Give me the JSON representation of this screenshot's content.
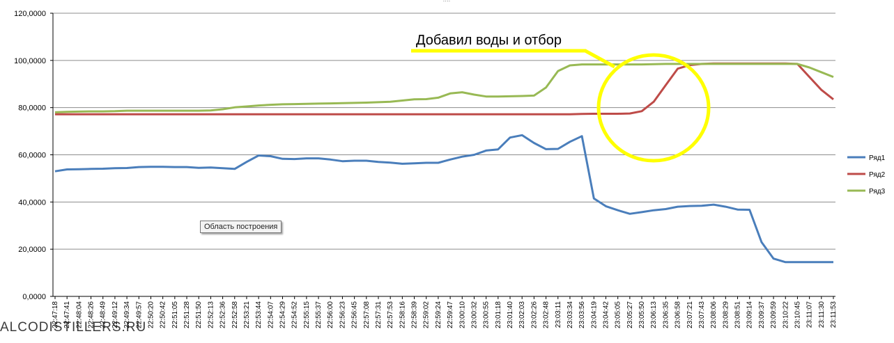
{
  "chart_data": {
    "type": "line",
    "title": "",
    "xlabel": "",
    "ylabel": "",
    "ylim": [
      0,
      120000
    ],
    "yticks": [
      "0,0000",
      "20,0000",
      "40,0000",
      "60,0000",
      "80,0000",
      "100,0000",
      "120,0000"
    ],
    "grid": "horizontal",
    "legend_position": "right",
    "x": [
      "22:47:18",
      "22:47:41",
      "22:48:04",
      "22:48:26",
      "22:48:49",
      "22:49:12",
      "22:49:34",
      "22:49:57",
      "22:50:20",
      "22:50:42",
      "22:51:05",
      "22:51:28",
      "22:51:50",
      "22:52:13",
      "22:52:36",
      "22:52:58",
      "22:53:21",
      "22:53:44",
      "22:54:07",
      "22:54:29",
      "22:54:52",
      "22:55:15",
      "22:55:37",
      "22:56:00",
      "22:56:23",
      "22:56:45",
      "22:57:08",
      "22:57:31",
      "22:57:53",
      "22:58:16",
      "22:58:39",
      "22:59:02",
      "22:59:24",
      "22:59:47",
      "23:00:10",
      "23:00:32",
      "23:00:55",
      "23:01:18",
      "23:01:40",
      "23:02:03",
      "23:02:26",
      "23:02:48",
      "23:03:11",
      "23:03:34",
      "23:03:56",
      "23:04:19",
      "23:04:42",
      "23:05:05",
      "23:05:27",
      "23:05:50",
      "23:06:13",
      "23:06:35",
      "23:06:58",
      "23:07:21",
      "23:07:43",
      "23:08:06",
      "23:08:29",
      "23:08:51",
      "23:09:14",
      "23:09:37",
      "23:09:59",
      "23:10:22",
      "23:10:45",
      "23:11:07",
      "23:11:30",
      "23:11:53"
    ],
    "series": [
      {
        "name": "Ряд1",
        "color": "#4a7ebb",
        "values": [
          53000,
          53800,
          53900,
          54000,
          54100,
          54300,
          54400,
          54800,
          54900,
          54900,
          54800,
          54800,
          54500,
          54600,
          54300,
          54000,
          57000,
          59700,
          59400,
          58300,
          58200,
          58500,
          58500,
          58000,
          57300,
          57500,
          57500,
          57000,
          56700,
          56200,
          56400,
          56600,
          56600,
          58000,
          59200,
          60000,
          61800,
          62300,
          67300,
          68300,
          65000,
          62400,
          62500,
          65500,
          67900,
          41500,
          38200,
          36500,
          35000,
          35700,
          36500,
          37000,
          38000,
          38300,
          38400,
          38900,
          38000,
          36800,
          36700,
          23000,
          16000,
          14500,
          14500,
          14500,
          14500,
          14500
        ]
      },
      {
        "name": "Ряд2",
        "color": "#be4b48",
        "values": [
          77200,
          77200,
          77200,
          77200,
          77200,
          77200,
          77200,
          77200,
          77200,
          77200,
          77200,
          77200,
          77200,
          77200,
          77200,
          77200,
          77200,
          77200,
          77200,
          77200,
          77200,
          77200,
          77200,
          77200,
          77200,
          77200,
          77200,
          77200,
          77200,
          77200,
          77200,
          77200,
          77200,
          77200,
          77200,
          77200,
          77200,
          77200,
          77200,
          77200,
          77200,
          77200,
          77200,
          77200,
          77300,
          77400,
          77400,
          77400,
          77500,
          78500,
          82500,
          89500,
          96500,
          98000,
          98500,
          98700,
          98700,
          98700,
          98700,
          98700,
          98700,
          98700,
          98500,
          93000,
          87500,
          83500
        ]
      },
      {
        "name": "Ряд3",
        "color": "#98b954",
        "values": [
          78000,
          78200,
          78300,
          78400,
          78400,
          78500,
          78700,
          78700,
          78700,
          78700,
          78700,
          78700,
          78700,
          78800,
          79300,
          80100,
          80500,
          80900,
          81200,
          81400,
          81500,
          81600,
          81700,
          81800,
          81900,
          82000,
          82100,
          82300,
          82500,
          83000,
          83500,
          83600,
          84200,
          86000,
          86500,
          85500,
          84700,
          84700,
          84800,
          84900,
          85100,
          88500,
          95500,
          97900,
          98300,
          98300,
          98300,
          98300,
          98300,
          98300,
          98400,
          98500,
          98500,
          98500,
          98500,
          98500,
          98500,
          98500,
          98500,
          98500,
          98500,
          98500,
          98500,
          97000,
          95000,
          93000
        ]
      }
    ],
    "annotations": [
      "Добавил воды и отбор"
    ]
  },
  "ui": {
    "tooltip": "Область построения",
    "watermark": "ALCODISTILLERS.RU"
  },
  "colors": {
    "highlight": "#ffff00",
    "grid": "#8c8c8c"
  }
}
